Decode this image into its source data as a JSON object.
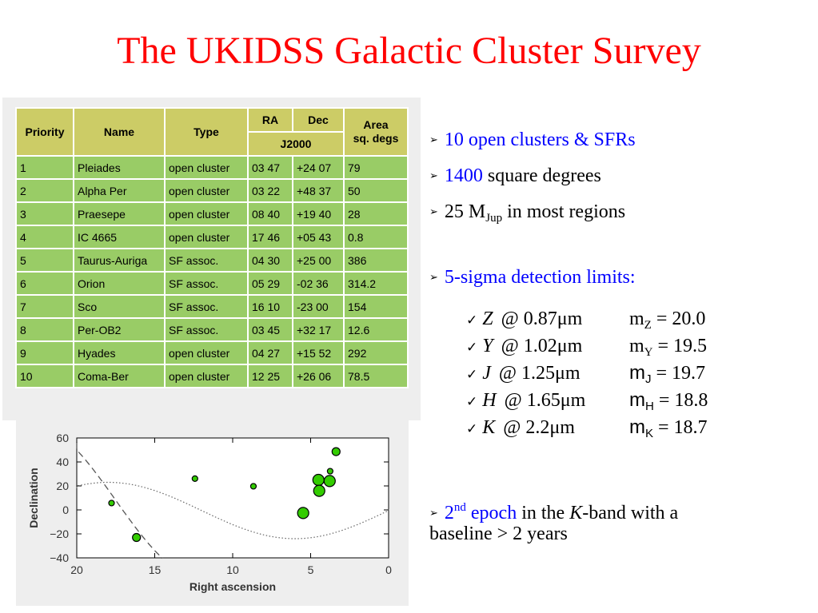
{
  "slide": {
    "title": "The UKIDSS Galactic Cluster Survey"
  },
  "table": {
    "headers": {
      "priority": "Priority",
      "name": "Name",
      "type": "Type",
      "ra": "RA",
      "dec": "Dec",
      "epoch": "J2000",
      "area_line1": "Area",
      "area_line2": "sq. degs"
    },
    "rows": [
      [
        "1",
        "Pleiades",
        "open cluster",
        "03 47",
        "+24 07",
        "79"
      ],
      [
        "2",
        "Alpha Per",
        "open cluster",
        "03 22",
        "+48 37",
        "50"
      ],
      [
        "3",
        "Praesepe",
        "open cluster",
        "08 40",
        "+19 40",
        "28"
      ],
      [
        "4",
        "IC 4665",
        "open cluster",
        "17 46",
        "+05 43",
        "0.8"
      ],
      [
        "5",
        "Taurus-Auriga",
        "SF assoc.",
        "04 30",
        "+25 00",
        "386"
      ],
      [
        "6",
        "Orion",
        "SF assoc.",
        "05 29",
        "-02 36",
        "314.2"
      ],
      [
        "7",
        "Sco",
        "SF assoc.",
        "16 10",
        "-23 00",
        "154"
      ],
      [
        "8",
        "Per-OB2",
        "SF assoc.",
        "03 45",
        "+32 17",
        "12.6"
      ],
      [
        "9",
        "Hyades",
        "open cluster",
        "04 27",
        "+15 52",
        "292"
      ],
      [
        "10",
        "Coma-Ber",
        "open cluster",
        "12 25",
        "+26 06",
        "78.5"
      ]
    ]
  },
  "chart_data": {
    "type": "scatter",
    "xlabel": "Right ascension",
    "ylabel": "Declination",
    "xlim": [
      20,
      0
    ],
    "ylim": [
      -40,
      60
    ],
    "xticks": [
      "20",
      "15",
      "10",
      "5",
      "0"
    ],
    "yticks": [
      "60",
      "40",
      "20",
      "0",
      "−20",
      "−40"
    ],
    "point_color": "#33cc00",
    "points": [
      {
        "x": 3.78,
        "y": 24.1,
        "size": "large"
      },
      {
        "x": 3.37,
        "y": 48.6,
        "size": "medium"
      },
      {
        "x": 8.67,
        "y": 19.7,
        "size": "small"
      },
      {
        "x": 17.77,
        "y": 5.7,
        "size": "small"
      },
      {
        "x": 4.5,
        "y": 25.0,
        "size": "large"
      },
      {
        "x": 5.48,
        "y": -2.6,
        "size": "large"
      },
      {
        "x": 16.17,
        "y": -23.0,
        "size": "medium"
      },
      {
        "x": 3.75,
        "y": 32.3,
        "size": "small"
      },
      {
        "x": 4.45,
        "y": 15.9,
        "size": "large"
      },
      {
        "x": 12.42,
        "y": 26.1,
        "size": "small"
      }
    ]
  },
  "bullets": {
    "b1_blue": "10 open clusters & SFRs",
    "b2_blue": "1400",
    "b2_rest": " square degrees",
    "b3_pre": "25 M",
    "b3_sub": "Jup",
    "b3_post": " in most regions",
    "b4_blue": "5-sigma detection limits:",
    "b5_pre_blue": "2",
    "b5_sup_blue": "nd",
    "b5_blue": " epoch",
    "b5_rest1": " in the ",
    "b5_ital": "K",
    "b5_rest2": "-band with a",
    "b5_line2": "baseline > 2 years"
  },
  "limits": [
    {
      "filter": "Z",
      "wave": "@ 0.87μm",
      "m": "m",
      "sub": "Z",
      "value": " = 20.0"
    },
    {
      "filter": "Y",
      "wave": "@ 1.02μm",
      "m": "m",
      "sub": "Y",
      "value": " = 19.5"
    },
    {
      "filter": "J",
      "wave": "@ 1.25μm",
      "m": "m",
      "sub": "J",
      "value": " = 19.7"
    },
    {
      "filter": "H",
      "wave": "@ 1.65μm",
      "m": "m",
      "sub": "H",
      "value": " = 18.8"
    },
    {
      "filter": "K",
      "wave": "@ 2.2μm",
      "m": "m",
      "sub": "K",
      "value": " = 18.7"
    }
  ],
  "icons": {
    "arrow": "➢",
    "check": "✓"
  }
}
